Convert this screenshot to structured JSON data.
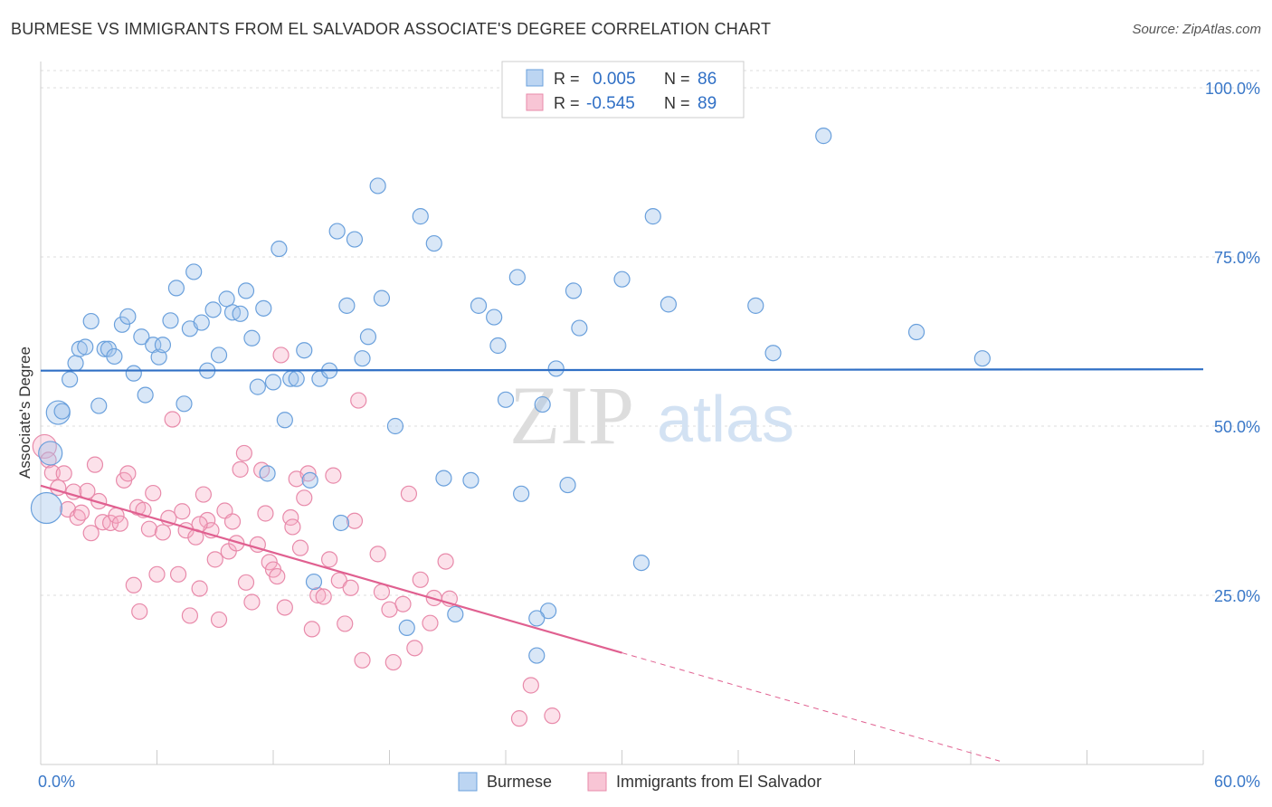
{
  "title": "BURMESE VS IMMIGRANTS FROM EL SALVADOR ASSOCIATE'S DEGREE CORRELATION CHART",
  "source": "Source: ZipAtlas.com",
  "watermark": {
    "zip": "ZIP",
    "atlas": "atlas"
  },
  "legend_box": {
    "rows": [
      {
        "r_label": "R =",
        "r_value": "0.005",
        "n_label": "N =",
        "n_value": "86"
      },
      {
        "r_label": "R =",
        "r_value": "-0.545",
        "n_label": "N =",
        "n_value": "89"
      }
    ]
  },
  "bottom_legend": [
    "Burmese",
    "Immigrants from El Salvador"
  ],
  "chart_data": {
    "type": "scatter",
    "ylabel": "Associate's Degree",
    "xlim": [
      0,
      60
    ],
    "ylim": [
      0,
      100
    ],
    "x_ticks": [
      "0.0%",
      "60.0%"
    ],
    "y_ticks": [
      {
        "value": 100,
        "label": "100.0%"
      },
      {
        "value": 75,
        "label": "75.0%"
      },
      {
        "value": 50,
        "label": "50.0%"
      },
      {
        "value": 25,
        "label": "25.0%"
      }
    ],
    "colors": {
      "burmese": "#6aa0dc",
      "salvador": "#e88aaa",
      "burmese_line": "#2f6fc5",
      "salvador_line": "#e06090"
    },
    "series": [
      {
        "name": "Burmese",
        "trend": {
          "x0": 0,
          "y0": 58.2,
          "x1": 60,
          "y1": 58.4
        },
        "points": [
          [
            0.3,
            37.9,
            3
          ],
          [
            0.5,
            46.0,
            2
          ],
          [
            0.9,
            52.0,
            2
          ],
          [
            1.1,
            52.2,
            1
          ],
          [
            1.5,
            56.9,
            1
          ],
          [
            1.8,
            59.3,
            1
          ],
          [
            2.0,
            61.4,
            1
          ],
          [
            2.3,
            61.7,
            1
          ],
          [
            2.6,
            65.5,
            1
          ],
          [
            3.0,
            53.0,
            1
          ],
          [
            3.3,
            61.4,
            1
          ],
          [
            3.5,
            61.4,
            1
          ],
          [
            3.8,
            60.3,
            1
          ],
          [
            4.2,
            65.0,
            1
          ],
          [
            4.5,
            66.2,
            1
          ],
          [
            4.8,
            57.8,
            1
          ],
          [
            5.2,
            63.2,
            1
          ],
          [
            5.4,
            54.6,
            1
          ],
          [
            5.8,
            62.0,
            1
          ],
          [
            6.1,
            60.2,
            1
          ],
          [
            6.3,
            62.0,
            1
          ],
          [
            6.7,
            65.6,
            1
          ],
          [
            7.0,
            70.4,
            1
          ],
          [
            7.4,
            53.3,
            1
          ],
          [
            7.7,
            64.4,
            1
          ],
          [
            7.9,
            72.8,
            1
          ],
          [
            8.3,
            65.3,
            1
          ],
          [
            8.6,
            58.2,
            1
          ],
          [
            8.9,
            67.2,
            1
          ],
          [
            9.2,
            60.5,
            1
          ],
          [
            9.6,
            68.8,
            1
          ],
          [
            9.9,
            66.8,
            1
          ],
          [
            10.3,
            66.6,
            1
          ],
          [
            10.6,
            70.0,
            1
          ],
          [
            10.9,
            63.0,
            1
          ],
          [
            11.2,
            55.8,
            1
          ],
          [
            11.5,
            67.4,
            1
          ],
          [
            11.7,
            43.0,
            1
          ],
          [
            12.0,
            56.5,
            1
          ],
          [
            12.3,
            76.2,
            1
          ],
          [
            12.6,
            50.9,
            1
          ],
          [
            12.9,
            57.0,
            1
          ],
          [
            13.2,
            57.0,
            1
          ],
          [
            13.6,
            61.2,
            1
          ],
          [
            13.9,
            42.0,
            1
          ],
          [
            14.1,
            27.0,
            1
          ],
          [
            14.4,
            57.0,
            1
          ],
          [
            14.9,
            58.2,
            1
          ],
          [
            15.3,
            78.8,
            1
          ],
          [
            15.5,
            35.7,
            1
          ],
          [
            15.8,
            67.8,
            1
          ],
          [
            16.2,
            77.6,
            1
          ],
          [
            16.6,
            60.0,
            1
          ],
          [
            16.9,
            63.2,
            1
          ],
          [
            17.4,
            85.5,
            1
          ],
          [
            17.6,
            68.9,
            1
          ],
          [
            18.3,
            50.0,
            1
          ],
          [
            18.9,
            20.2,
            1
          ],
          [
            19.6,
            81.0,
            1
          ],
          [
            20.3,
            77.0,
            1
          ],
          [
            20.8,
            42.3,
            1
          ],
          [
            21.4,
            22.2,
            1
          ],
          [
            22.2,
            42.0,
            1
          ],
          [
            22.6,
            67.8,
            1
          ],
          [
            23.4,
            66.1,
            1
          ],
          [
            23.6,
            61.9,
            1
          ],
          [
            24.0,
            53.9,
            1
          ],
          [
            24.6,
            72.0,
            1
          ],
          [
            24.8,
            40.0,
            1
          ],
          [
            25.6,
            16.1,
            1
          ],
          [
            25.9,
            53.2,
            1
          ],
          [
            26.2,
            22.7,
            1
          ],
          [
            26.6,
            58.5,
            1
          ],
          [
            27.2,
            41.3,
            1
          ],
          [
            27.5,
            70.0,
            1
          ],
          [
            27.8,
            64.5,
            1
          ],
          [
            30.0,
            71.7,
            1
          ],
          [
            31.0,
            29.8,
            1
          ],
          [
            31.6,
            81.0,
            1
          ],
          [
            32.4,
            68.0,
            1
          ],
          [
            36.9,
            67.8,
            1
          ],
          [
            37.8,
            60.8,
            1
          ],
          [
            40.4,
            92.9,
            1
          ],
          [
            45.2,
            63.9,
            1
          ],
          [
            48.6,
            60.0,
            1
          ],
          [
            25.6,
            21.6,
            1
          ]
        ]
      },
      {
        "name": "Immigrants from El Salvador",
        "trend": {
          "x0": 0,
          "y0": 41.2,
          "x1": 30,
          "y1": 16.5,
          "dash_x1": 49.5,
          "dash_y1": 0.5
        },
        "points": [
          [
            0.2,
            47.0,
            2
          ],
          [
            0.4,
            45.0,
            1
          ],
          [
            0.6,
            43.1,
            1
          ],
          [
            0.9,
            40.9,
            1
          ],
          [
            1.2,
            43.0,
            1
          ],
          [
            1.4,
            37.7,
            1
          ],
          [
            1.7,
            40.3,
            1
          ],
          [
            1.9,
            36.5,
            1
          ],
          [
            2.1,
            37.2,
            1
          ],
          [
            2.4,
            40.4,
            1
          ],
          [
            2.6,
            34.2,
            1
          ],
          [
            2.8,
            44.3,
            1
          ],
          [
            3.0,
            38.9,
            1
          ],
          [
            3.2,
            35.8,
            1
          ],
          [
            3.6,
            35.7,
            1
          ],
          [
            3.9,
            36.8,
            1
          ],
          [
            4.1,
            35.6,
            1
          ],
          [
            4.3,
            42.0,
            1
          ],
          [
            4.5,
            43.0,
            1
          ],
          [
            4.8,
            26.5,
            1
          ],
          [
            5.0,
            38.0,
            1
          ],
          [
            5.1,
            22.6,
            1
          ],
          [
            5.3,
            37.6,
            1
          ],
          [
            5.6,
            34.8,
            1
          ],
          [
            5.8,
            40.1,
            1
          ],
          [
            6.0,
            28.1,
            1
          ],
          [
            6.3,
            34.3,
            1
          ],
          [
            6.6,
            36.4,
            1
          ],
          [
            6.8,
            51.0,
            1
          ],
          [
            7.1,
            28.1,
            1
          ],
          [
            7.3,
            37.4,
            1
          ],
          [
            7.5,
            34.6,
            1
          ],
          [
            7.7,
            22.0,
            1
          ],
          [
            8.0,
            33.6,
            1
          ],
          [
            8.2,
            26.0,
            1
          ],
          [
            8.4,
            39.9,
            1
          ],
          [
            8.6,
            36.1,
            1
          ],
          [
            8.8,
            34.6,
            1
          ],
          [
            9.0,
            30.3,
            1
          ],
          [
            9.2,
            21.4,
            1
          ],
          [
            9.5,
            37.5,
            1
          ],
          [
            9.7,
            31.5,
            1
          ],
          [
            9.9,
            35.9,
            1
          ],
          [
            10.1,
            32.7,
            1
          ],
          [
            10.3,
            43.6,
            1
          ],
          [
            10.5,
            46.0,
            1
          ],
          [
            10.6,
            26.9,
            1
          ],
          [
            10.9,
            24.0,
            1
          ],
          [
            11.2,
            32.5,
            1
          ],
          [
            11.4,
            43.5,
            1
          ],
          [
            11.6,
            37.1,
            1
          ],
          [
            11.8,
            29.9,
            1
          ],
          [
            12.0,
            28.8,
            1
          ],
          [
            12.2,
            27.8,
            1
          ],
          [
            12.4,
            60.5,
            1
          ],
          [
            12.6,
            23.2,
            1
          ],
          [
            12.9,
            36.5,
            1
          ],
          [
            13.0,
            35.1,
            1
          ],
          [
            13.2,
            42.2,
            1
          ],
          [
            13.4,
            32.0,
            1
          ],
          [
            13.6,
            39.4,
            1
          ],
          [
            13.8,
            43.0,
            1
          ],
          [
            14.0,
            20.0,
            1
          ],
          [
            14.3,
            25.0,
            1
          ],
          [
            14.6,
            24.8,
            1
          ],
          [
            14.9,
            30.3,
            1
          ],
          [
            15.1,
            42.7,
            1
          ],
          [
            15.4,
            27.2,
            1
          ],
          [
            15.7,
            20.8,
            1
          ],
          [
            16.0,
            26.1,
            1
          ],
          [
            16.2,
            36.0,
            1
          ],
          [
            16.4,
            53.8,
            1
          ],
          [
            16.6,
            15.4,
            1
          ],
          [
            17.4,
            31.1,
            1
          ],
          [
            17.6,
            25.5,
            1
          ],
          [
            18.0,
            22.9,
            1
          ],
          [
            18.2,
            15.1,
            1
          ],
          [
            18.7,
            23.7,
            1
          ],
          [
            19.0,
            40.0,
            1
          ],
          [
            19.3,
            17.2,
            1
          ],
          [
            19.6,
            27.3,
            1
          ],
          [
            20.1,
            20.9,
            1
          ],
          [
            20.3,
            24.6,
            1
          ],
          [
            20.9,
            30.0,
            1
          ],
          [
            21.1,
            24.5,
            1
          ],
          [
            24.7,
            6.8,
            1
          ],
          [
            25.3,
            11.7,
            1
          ],
          [
            26.4,
            7.2,
            1
          ],
          [
            8.2,
            35.5,
            1
          ]
        ]
      }
    ]
  }
}
